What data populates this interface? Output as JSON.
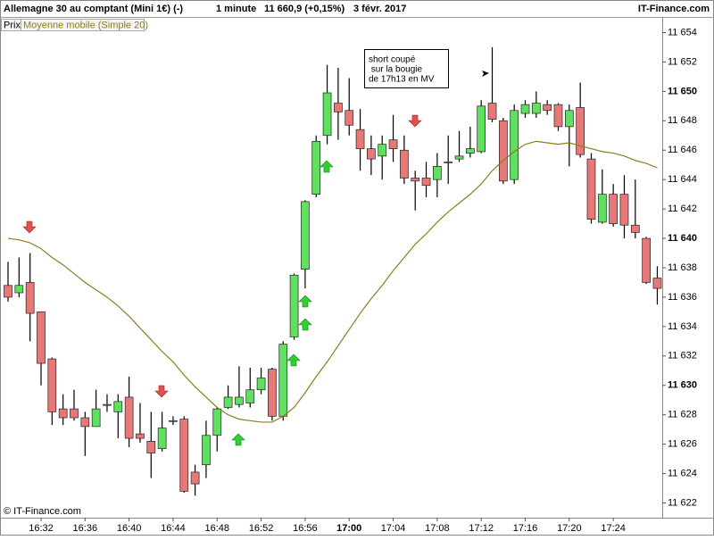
{
  "chart_data": {
    "type": "candlestick",
    "title": "Allemagne 30 au comptant (Mini 1€) (-)",
    "interval": "1 minute",
    "last": "11 660,9 (+0,15%)",
    "date": "3 févr. 2017",
    "source": "IT-Finance.com",
    "copyright": "© IT-Finance.com",
    "annotation": [
      "short coupé",
      " sur la bougie",
      "de 17h13 en MV"
    ],
    "categories": [
      null,
      null,
      null,
      "16:32",
      null,
      null,
      null,
      "16:36",
      null,
      null,
      null,
      "16:40",
      null,
      null,
      null,
      "16:44",
      null,
      null,
      null,
      "16:48",
      null,
      null,
      null,
      "16:52",
      null,
      null,
      null,
      "16:56",
      null,
      null,
      null,
      "17:00",
      null,
      null,
      null,
      "17:04",
      null,
      null,
      null,
      "17:08",
      null,
      null,
      null,
      "17:12",
      null,
      null,
      null,
      "17:16",
      null,
      null,
      null,
      "17:20",
      null,
      null,
      null,
      "17:24",
      null,
      null,
      null,
      null
    ],
    "series": [
      {
        "name": "Prix",
        "up_color": "#5fe05f",
        "down_color": "#e87878",
        "open": [
          11636.8,
          11636.3,
          11637.0,
          11635.0,
          11631.8,
          11628.4,
          11628.4,
          11627.8,
          11627.2,
          11628.7,
          11628.2,
          11629.2,
          11626.7,
          11626.2,
          11625.7,
          11627.6,
          11627.7,
          11624.1,
          11624.6,
          11626.6,
          11628.5,
          11628.7,
          11628.8,
          11629.7,
          11631.1,
          11627.9,
          11633.3,
          11637.9,
          11643.0,
          11647.0,
          11649.2,
          11648.7,
          11647.4,
          11646.1,
          11645.6,
          11646.7,
          11646.0,
          11644.1,
          11644.1,
          11644.0,
          11645.2,
          11645.4,
          11645.8,
          11645.9,
          11649.2,
          11648.0,
          11644.0,
          11648.5,
          11648.5,
          11649.1,
          11649.1,
          11647.6,
          11648.9,
          11645.4,
          11641.1,
          11643.0,
          11643.0,
          11640.9,
          11640.0,
          11637.3
        ],
        "high": [
          11638.4,
          11638.7,
          11639.0,
          11635.0,
          11631.9,
          11629.4,
          11629.7,
          11628.2,
          11629.7,
          11629.4,
          11629.4,
          11630.6,
          11628.8,
          11628.2,
          11628.2,
          11627.9,
          11627.9,
          11624.6,
          11627.6,
          11628.5,
          11630.0,
          11631.3,
          11631.2,
          11631.2,
          11631.2,
          11633.0,
          11637.6,
          11642.6,
          11647.0,
          11651.8,
          11651.6,
          11650.9,
          11648.8,
          11647.0,
          11647.0,
          11648.4,
          11647.0,
          11644.6,
          11645.2,
          11645.8,
          11647.0,
          11647.3,
          11647.6,
          11649.4,
          11653.0,
          11648.2,
          11649.1,
          11649.4,
          11650.0,
          11649.4,
          11649.2,
          11649.1,
          11650.6,
          11645.8,
          11644.7,
          11643.7,
          11644.3,
          11644.0,
          11640.1,
          11638.1
        ],
        "low": [
          11635.7,
          11636.0,
          11633.0,
          11630.0,
          11627.3,
          11627.3,
          11627.6,
          11625.2,
          11627.3,
          11628.2,
          11626.4,
          11625.8,
          11626.1,
          11623.7,
          11625.5,
          11627.3,
          11622.7,
          11622.5,
          11623.7,
          11625.5,
          11628.4,
          11628.5,
          11628.5,
          11629.4,
          11627.6,
          11627.6,
          11633.1,
          11636.6,
          11642.8,
          11646.4,
          11646.7,
          11647.0,
          11644.6,
          11644.3,
          11644.0,
          11645.2,
          11643.7,
          11641.9,
          11642.8,
          11642.8,
          11643.7,
          11645.2,
          11645.5,
          11645.8,
          11647.9,
          11643.7,
          11643.7,
          11648.2,
          11648.2,
          11648.4,
          11647.3,
          11644.9,
          11645.5,
          11641.0,
          11641.0,
          11640.8,
          11640.0,
          11640.0,
          11636.9,
          11635.5
        ],
        "close": [
          11636.0,
          11636.8,
          11634.9,
          11631.5,
          11628.2,
          11627.8,
          11627.8,
          11627.2,
          11628.4,
          11628.7,
          11628.9,
          11626.4,
          11626.4,
          11625.4,
          11627.1,
          11627.6,
          11622.8,
          11623.3,
          11626.6,
          11628.4,
          11629.2,
          11629.2,
          11629.7,
          11630.5,
          11627.9,
          11632.8,
          11637.5,
          11642.5,
          11646.6,
          11649.9,
          11648.6,
          11647.7,
          11646.1,
          11645.4,
          11646.4,
          11646.1,
          11644.1,
          11643.9,
          11643.6,
          11644.9,
          11645.2,
          11645.6,
          11646.1,
          11649.0,
          11648.1,
          11643.9,
          11648.7,
          11649.1,
          11649.2,
          11648.7,
          11647.6,
          11648.7,
          11645.7,
          11641.3,
          11643.0,
          11641.0,
          11640.9,
          11640.4,
          11637.0,
          11636.6
        ]
      },
      {
        "name": "Moyenne mobile (Simple 20)",
        "color": "#8a7d1e",
        "values": [
          11640.0,
          11639.9,
          11639.7,
          11639.3,
          11638.7,
          11638.2,
          11637.6,
          11637.0,
          11636.5,
          11636.0,
          11635.4,
          11634.7,
          11633.9,
          11633.1,
          11632.3,
          11631.6,
          11630.7,
          11629.9,
          11629.2,
          11628.5,
          11628.0,
          11627.7,
          11627.6,
          11627.5,
          11627.5,
          11627.9,
          11628.5,
          11629.5,
          11630.6,
          11631.6,
          11632.7,
          11633.8,
          11634.9,
          11635.9,
          11636.8,
          11637.8,
          11638.7,
          11639.6,
          11640.3,
          11641.1,
          11641.8,
          11642.4,
          11643.0,
          11643.7,
          11644.6,
          11645.3,
          11645.9,
          11646.4,
          11646.6,
          11646.5,
          11646.4,
          11646.5,
          11646.3,
          11646.1,
          11645.9,
          11645.8,
          11645.6,
          11645.3,
          11645.1,
          11644.8
        ]
      }
    ],
    "ylim": [
      11621.0,
      11655.0
    ],
    "yticks": [
      {
        "value": 11622,
        "label": "11 622"
      },
      {
        "value": 11624,
        "label": "11 624"
      },
      {
        "value": 11626,
        "label": "11 626"
      },
      {
        "value": 11628,
        "label": "11 628"
      },
      {
        "value": 11630,
        "label": "11 630"
      },
      {
        "value": 11632,
        "label": "11 632"
      },
      {
        "value": 11634,
        "label": "11 634"
      },
      {
        "value": 11636,
        "label": "11 636"
      },
      {
        "value": 11638,
        "label": "11 638"
      },
      {
        "value": 11640,
        "label": "11 640"
      },
      {
        "value": 11642,
        "label": "11 642"
      },
      {
        "value": 11644,
        "label": "11 644"
      },
      {
        "value": 11646,
        "label": "11 646"
      },
      {
        "value": 11648,
        "label": "11 648"
      },
      {
        "value": 11650,
        "label": "11 650"
      },
      {
        "value": 11652,
        "label": "11 652"
      },
      {
        "value": 11654,
        "label": "11 654"
      }
    ]
  }
}
